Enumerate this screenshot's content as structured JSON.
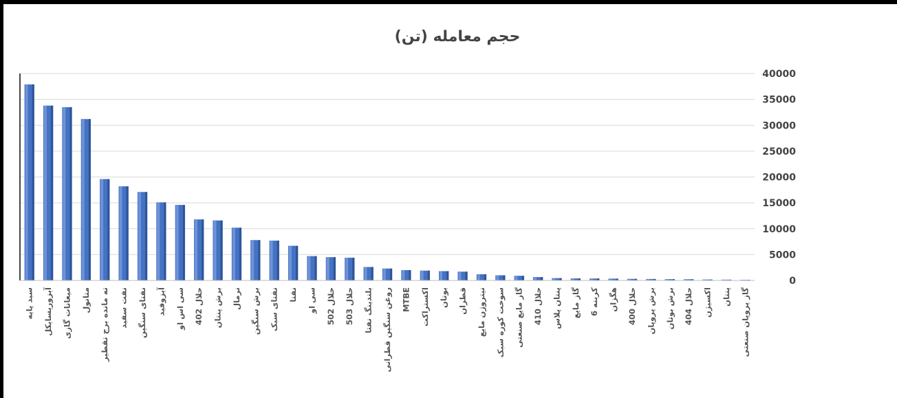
{
  "chart_data": {
    "type": "bar",
    "title": "حجم معامله (تن)",
    "xlabel": "",
    "ylabel": "",
    "ylim": [
      0,
      40000
    ],
    "yticks": [
      0,
      5000,
      10000,
      15000,
      20000,
      25000,
      30000,
      35000,
      40000
    ],
    "y_axis_side": "right",
    "grid": true,
    "legend": "none",
    "bar_color": "#4472C4",
    "categories": [
      "سبد پایه",
      "آیزوریسایکل",
      "میعانات گازی",
      "متانول",
      "ته مانده برج تقطیر",
      "نفت سفید",
      "نفتای سنگین",
      "آیزوفید",
      "سی اس او",
      "حلال 402",
      "برش پنتان",
      "نرمال",
      "برش سنگین",
      "نفتای سبک",
      "نفتا",
      "سی او",
      "حلال 502",
      "حلال 503",
      "بلندینگ نفتا",
      "روغن سنگین قطرانی",
      "MTBE",
      "اکستراکت",
      "بوتان",
      "قطران",
      "نیتروژن مایع",
      "سوخت کوره سبک",
      "گاز مایع صنعتی",
      "حلال 410",
      "پنتان پلاس",
      "گاز مایع",
      "6 کربنه",
      "هگزان",
      "حلال 400",
      "برش پروپان",
      "برش بوتان",
      "حلال 404",
      "اکسیژن",
      "پنتان",
      "گاز پروپان صنعتی"
    ],
    "values": [
      37900,
      33800,
      33500,
      31200,
      19600,
      18200,
      17100,
      15100,
      14600,
      11800,
      11600,
      10200,
      7800,
      7700,
      6700,
      4700,
      4500,
      4400,
      2600,
      2300,
      2000,
      1900,
      1800,
      1700,
      1200,
      1000,
      900,
      650,
      450,
      400,
      380,
      350,
      300,
      280,
      250,
      230,
      180,
      150,
      120
    ]
  }
}
